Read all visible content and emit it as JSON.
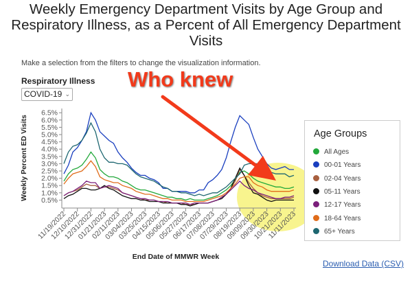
{
  "title": [
    "Weekly Emergency Department Visits by Age Group and",
    "Respiratory Illness, as a Percent of All Emergency Department",
    "Visits"
  ],
  "subtitle": "Make a selection from the filters to change the visualization information.",
  "filter": {
    "label": "Respiratory Illness",
    "value": "COVID-19"
  },
  "annotation": {
    "text": "Who knew",
    "color": "#f23a1b",
    "highlight_color": "#f7f27a"
  },
  "download_label": "Download Data (CSV)",
  "legend_title": "Age Groups",
  "chart_data": {
    "type": "line",
    "xlabel": "End Date of MMWR Week",
    "ylabel": "Weekly Percent ED Visits",
    "ylim": [
      0,
      6.5
    ],
    "yticks": [
      "0.5%",
      "1.0%",
      "1.5%",
      "2.0%",
      "2.5%",
      "3.0%",
      "3.5%",
      "4.0%",
      "4.5%",
      "5.0%",
      "5.5%",
      "6.0%",
      "6.5%"
    ],
    "ytick_values": [
      0.5,
      1,
      1.5,
      2,
      2.5,
      3,
      3.5,
      4,
      4.5,
      5,
      5.5,
      6,
      6.5
    ],
    "xticks": [
      "11/19/2022",
      "12/10/2022",
      "12/31/2022",
      "01/21/2023",
      "02/11/2023",
      "03/04/2023",
      "03/25/2023",
      "04/15/2023",
      "05/06/2023",
      "05/27/2023",
      "06/17/2023",
      "07/08/2023",
      "07/29/2023",
      "08/19/2023",
      "09/09/2023",
      "09/30/2023",
      "10/21/2023",
      "11/11/2023"
    ],
    "weeks": 52,
    "series": [
      {
        "name": "All Ages",
        "color": "#22a83a",
        "values": [
          1.8,
          2.3,
          2.6,
          2.7,
          2.9,
          3.3,
          3.8,
          3.4,
          2.6,
          2.3,
          2.1,
          2.1,
          2.0,
          1.8,
          1.7,
          1.5,
          1.3,
          1.2,
          1.2,
          1.1,
          1.0,
          0.9,
          0.8,
          0.7,
          0.7,
          0.6,
          0.6,
          0.5,
          0.6,
          0.5,
          0.5,
          0.5,
          0.6,
          0.7,
          0.8,
          1.0,
          1.2,
          1.5,
          1.9,
          2.4,
          2.5,
          2.3,
          2.0,
          1.8,
          1.7,
          1.6,
          1.5,
          1.4,
          1.4,
          1.3,
          1.3,
          1.4
        ]
      },
      {
        "name": "00-01 Years",
        "color": "#1a3fbf",
        "values": [
          2.3,
          2.9,
          3.8,
          4.1,
          4.6,
          5.2,
          6.5,
          6.0,
          5.2,
          4.9,
          4.6,
          4.4,
          3.8,
          3.4,
          3.1,
          2.7,
          2.4,
          2.2,
          2.2,
          2.0,
          1.9,
          1.7,
          1.3,
          1.3,
          1.1,
          1.1,
          1.1,
          1.1,
          1.0,
          1.0,
          1.2,
          1.2,
          1.7,
          1.9,
          2.2,
          2.6,
          3.4,
          4.5,
          5.5,
          6.3,
          6.0,
          5.7,
          4.8,
          4.0,
          3.5,
          3.0,
          2.7,
          2.6,
          2.7,
          2.8,
          2.6,
          2.6
        ]
      },
      {
        "name": "02-04 Years",
        "color": "#a8603f",
        "values": [
          0.8,
          1.0,
          1.1,
          1.2,
          1.4,
          1.6,
          1.5,
          1.5,
          1.3,
          1.4,
          1.4,
          1.3,
          1.2,
          1.0,
          0.9,
          0.8,
          0.7,
          0.6,
          0.5,
          0.5,
          0.5,
          0.4,
          0.4,
          0.3,
          0.3,
          0.3,
          0.3,
          0.2,
          0.2,
          0.2,
          0.3,
          0.3,
          0.3,
          0.4,
          0.5,
          0.7,
          0.9,
          1.3,
          1.8,
          2.6,
          2.2,
          1.7,
          1.3,
          1.0,
          0.8,
          0.7,
          0.6,
          0.6,
          0.6,
          0.6,
          0.6,
          0.7
        ]
      },
      {
        "name": "05-11 Years",
        "color": "#111111",
        "values": [
          0.6,
          0.8,
          0.9,
          1.1,
          1.3,
          1.3,
          1.2,
          1.2,
          1.3,
          1.5,
          1.3,
          1.2,
          1.0,
          0.8,
          0.7,
          0.6,
          0.6,
          0.5,
          0.5,
          0.4,
          0.4,
          0.4,
          0.3,
          0.3,
          0.3,
          0.3,
          0.2,
          0.2,
          0.1,
          0.2,
          0.3,
          0.3,
          0.3,
          0.4,
          0.5,
          0.6,
          0.9,
          1.3,
          2.0,
          2.7,
          2.2,
          1.5,
          1.0,
          0.9,
          0.7,
          0.5,
          0.4,
          0.5,
          0.5,
          0.5,
          0.5,
          0.5
        ]
      },
      {
        "name": "12-17 Years",
        "color": "#7b1f7b",
        "values": [
          0.8,
          1.0,
          1.1,
          1.3,
          1.5,
          1.8,
          1.7,
          1.7,
          1.3,
          1.4,
          1.5,
          1.4,
          1.3,
          1.0,
          0.9,
          0.8,
          0.7,
          0.6,
          0.6,
          0.5,
          0.5,
          0.4,
          0.4,
          0.4,
          0.3,
          0.3,
          0.3,
          0.3,
          0.2,
          0.3,
          0.3,
          0.3,
          0.3,
          0.4,
          0.5,
          0.7,
          0.9,
          1.2,
          1.5,
          1.8,
          1.5,
          1.3,
          1.2,
          1.0,
          0.9,
          0.8,
          0.7,
          0.6,
          0.6,
          0.7,
          0.7,
          0.8
        ]
      },
      {
        "name": "18-64 Years",
        "color": "#e06c1a",
        "values": [
          1.6,
          2.0,
          2.3,
          2.4,
          2.5,
          2.8,
          3.2,
          2.8,
          2.1,
          1.9,
          1.8,
          1.7,
          1.7,
          1.5,
          1.4,
          1.3,
          1.1,
          1.0,
          0.9,
          0.9,
          0.8,
          0.7,
          0.6,
          0.6,
          0.5,
          0.5,
          0.5,
          0.4,
          0.4,
          0.4,
          0.4,
          0.4,
          0.5,
          0.6,
          0.7,
          0.8,
          1.0,
          1.3,
          1.6,
          2.0,
          2.1,
          2.1,
          1.7,
          1.5,
          1.4,
          1.2,
          1.1,
          1.1,
          1.1,
          1.1,
          1.1,
          1.2
        ]
      },
      {
        "name": "65+ Years",
        "color": "#1d6670",
        "values": [
          3.0,
          3.8,
          4.2,
          4.3,
          4.6,
          5.1,
          5.8,
          5.2,
          4.0,
          3.4,
          3.1,
          3.1,
          3.0,
          3.0,
          2.9,
          2.6,
          2.3,
          2.1,
          2.0,
          1.9,
          1.8,
          1.6,
          1.4,
          1.3,
          1.1,
          1.1,
          1.0,
          1.0,
          0.9,
          0.8,
          0.9,
          0.8,
          0.9,
          1.0,
          1.0,
          1.2,
          1.4,
          1.7,
          2.0,
          2.3,
          2.9,
          3.0,
          3.0,
          3.0,
          2.8,
          2.6,
          2.4,
          2.3,
          2.3,
          2.3,
          2.1,
          2.2
        ]
      }
    ]
  }
}
